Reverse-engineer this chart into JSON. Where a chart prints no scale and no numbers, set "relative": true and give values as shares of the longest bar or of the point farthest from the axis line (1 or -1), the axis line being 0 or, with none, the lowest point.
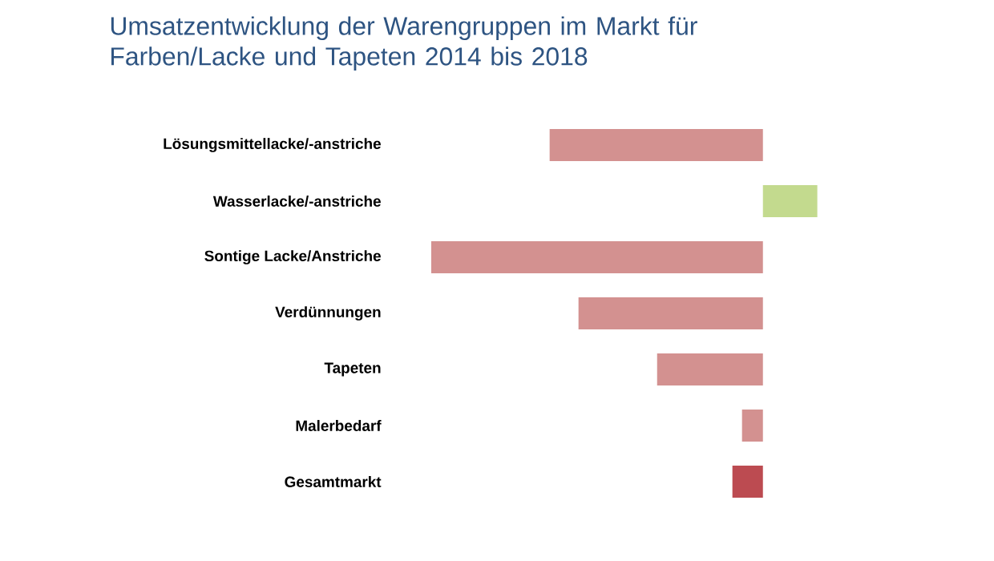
{
  "chart_data": {
    "type": "bar",
    "orientation": "horizontal",
    "relative": true,
    "title": "Umsatzentwicklung der Warengruppen im Markt für Farben/Lacke und Tapeten 2014 bis 2018",
    "categories": [
      "Lösungsmittellacke/-anstriche",
      "Wasserlacke/-anstriche",
      "Sontige Lacke/Anstriche",
      "Verdünnungen",
      "Tapeten",
      "Malerbedarf",
      "Gesamtmarkt"
    ],
    "values": [
      -0.643,
      0.164,
      -1,
      -0.556,
      -0.319,
      -0.063,
      -0.092
    ],
    "colors": [
      "#d39190",
      "#c3da8e",
      "#d39190",
      "#d39190",
      "#d39190",
      "#d39190",
      "#bc4b51"
    ]
  }
}
